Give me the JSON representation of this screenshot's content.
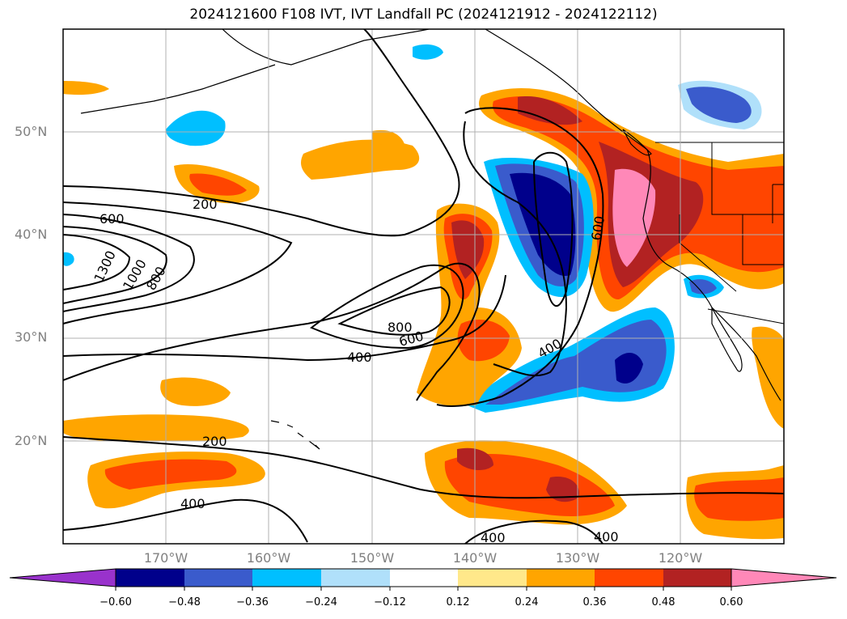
{
  "title": "2024121600 F108 IVT, IVT Landfall PC (2024121912 - 2024122112)",
  "lat_labels": [
    "50°N",
    "40°N",
    "30°N",
    "20°N"
  ],
  "lon_labels": [
    "170°W",
    "160°W",
    "150°W",
    "140°W",
    "130°W",
    "120°W"
  ],
  "contour_labels": [
    "200",
    "600",
    "1300",
    "1000",
    "800",
    "800",
    "600",
    "400",
    "400",
    "600",
    "200",
    "400",
    "400",
    "400"
  ],
  "colorbar": {
    "ticks": [
      "−0.60",
      "−0.48",
      "−0.36",
      "−0.24",
      "−0.12",
      "0.12",
      "0.24",
      "0.36",
      "0.48",
      "0.60"
    ],
    "colors": [
      "#9932cc",
      "#00008b",
      "#3a5bcc",
      "#00bfff",
      "#b0e0fa",
      "#ffffff",
      "#ffe88a",
      "#ffa500",
      "#ff4500",
      "#b22222",
      "#ff88b8"
    ]
  },
  "colors": {
    "neg_extreme": "#9932cc",
    "neg_strong": "#00008b",
    "neg_mid": "#3a5bcc",
    "neg_light": "#00bfff",
    "neg_faint": "#b0e0fa",
    "pos_faint": "#ffe88a",
    "pos_light": "#ffa500",
    "pos_mid": "#ff4500",
    "pos_strong": "#b22222",
    "pos_extreme": "#ff88b8"
  }
}
